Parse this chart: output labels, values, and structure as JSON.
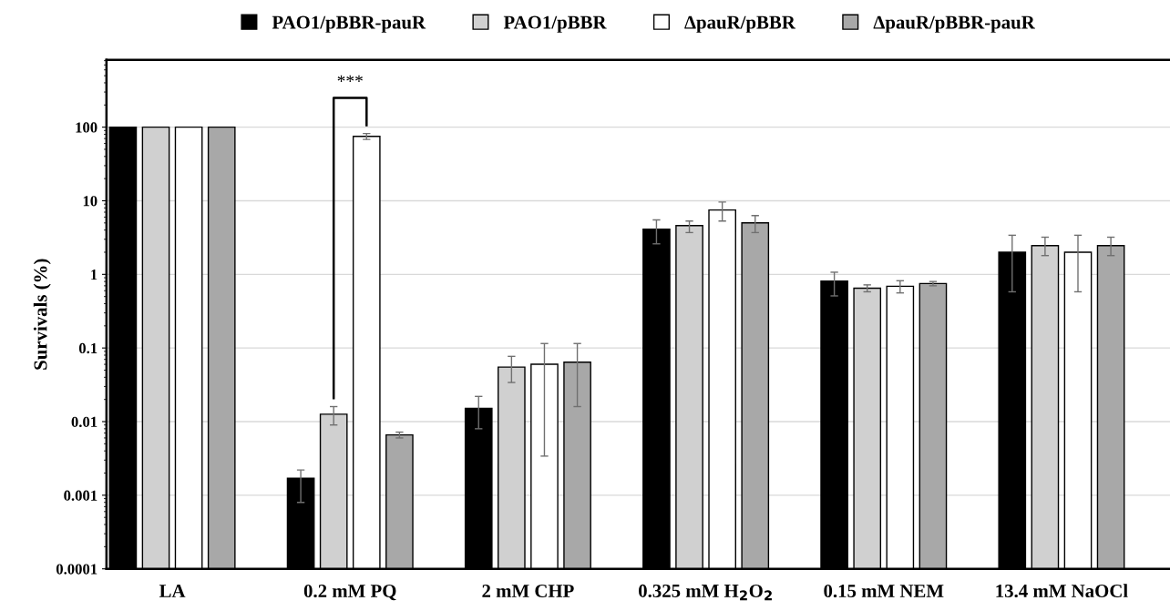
{
  "chart_data": {
    "type": "bar",
    "ylabel": "Survivals (%)",
    "log": "y",
    "ylim": [
      0.0001,
      820
    ],
    "yticks": [
      0.0001,
      0.001,
      0.01,
      0.1,
      1,
      10,
      100
    ],
    "grid": "y",
    "legend": "top",
    "categories": [
      "LA",
      "0.2 mM PQ",
      "2 mM CHP",
      "0.325 mM H$_{2}$O$_{2}$",
      "0.15 mM NEM",
      "13.4 mM NaOCl"
    ],
    "series": [
      {
        "name": "PAO1/pBBR-pauR",
        "color": "#000000",
        "values": [
          100,
          0.0016,
          0.015,
          4.1,
          0.81,
          2.0
        ],
        "errors": [
          null,
          [
            0.0008,
            0.0022
          ],
          [
            0.008,
            0.022
          ],
          [
            2.6,
            5.5
          ],
          [
            0.51,
            1.07
          ],
          [
            0.58,
            3.4
          ]
        ]
      },
      {
        "name": "PAO1/pBBR",
        "color": "#d0d0d0",
        "values": [
          100,
          0.0125,
          0.055,
          4.6,
          0.65,
          2.46
        ],
        "errors": [
          null,
          [
            0.009,
            0.016
          ],
          [
            0.034,
            0.077
          ],
          [
            3.7,
            5.3
          ],
          [
            0.58,
            0.72
          ],
          [
            1.8,
            3.2
          ]
        ]
      },
      {
        "name": "ΔpauR/pBBR",
        "color": "#ffffff",
        "values": [
          100,
          75,
          0.06,
          7.5,
          0.69,
          2.0
        ],
        "errors": [
          null,
          [
            68,
            82
          ],
          [
            0.0034,
            0.115
          ],
          [
            5.3,
            9.6
          ],
          [
            0.56,
            0.82
          ],
          [
            0.58,
            3.4
          ]
        ]
      },
      {
        "name": "ΔpauR/pBBR-pauR",
        "color": "#a8a8a8",
        "values": [
          100,
          0.0065,
          0.064,
          5.0,
          0.75,
          2.46
        ],
        "errors": [
          null,
          [
            0.006,
            0.0072
          ],
          [
            0.016,
            0.115
          ],
          [
            3.7,
            6.3
          ],
          [
            0.7,
            0.8
          ],
          [
            1.8,
            3.2
          ]
        ]
      }
    ],
    "annotations": [
      "***"
    ]
  }
}
